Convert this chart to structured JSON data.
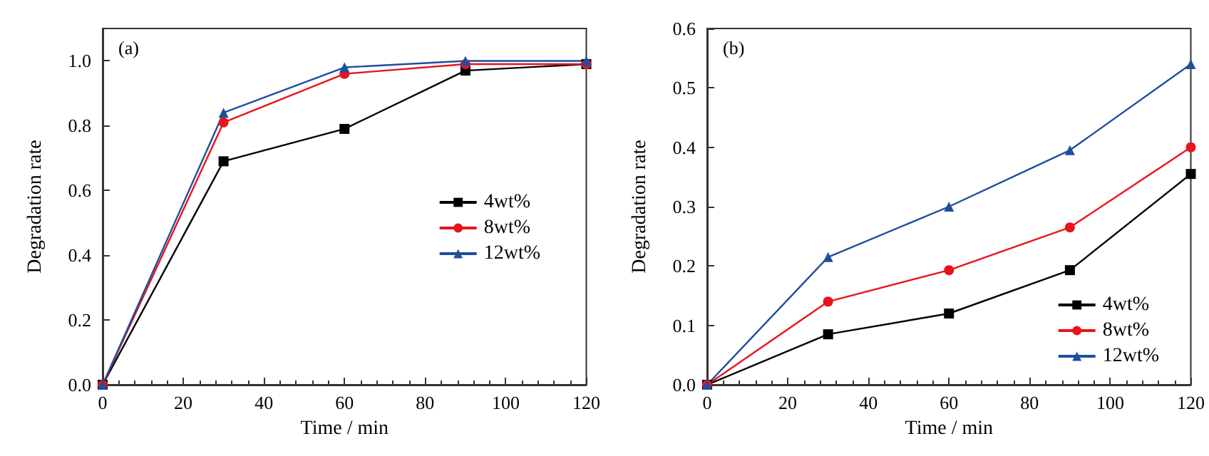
{
  "chart_data": [
    {
      "type": "line",
      "title": "(a)",
      "xlabel": "Time / min",
      "ylabel": "Degradation rate",
      "x": [
        0,
        30,
        60,
        90,
        120
      ],
      "series": [
        {
          "name": "4wt%",
          "color": "#000000",
          "marker": "square",
          "values": [
            0,
            0.69,
            0.79,
            0.97,
            0.99
          ]
        },
        {
          "name": "8wt%",
          "color": "#e8141c",
          "marker": "circle",
          "values": [
            0,
            0.81,
            0.96,
            0.99,
            0.99
          ]
        },
        {
          "name": "12wt%",
          "color": "#1f4e9c",
          "marker": "triangle",
          "values": [
            0,
            0.84,
            0.98,
            1.0,
            1.0
          ]
        }
      ],
      "xlim": [
        0,
        120
      ],
      "xticks": [
        0,
        20,
        40,
        60,
        80,
        100,
        120
      ],
      "ylim": [
        0,
        1.1
      ],
      "yticks": [
        {
          "value": 0,
          "label": "0.0"
        },
        {
          "value": 0.2,
          "label": "0.2"
        },
        {
          "value": 0.4,
          "label": "0.4"
        },
        {
          "value": 0.6,
          "label": "0.6"
        },
        {
          "value": 0.8,
          "label": "0.8"
        },
        {
          "value": 1.0,
          "label": "1.0"
        }
      ],
      "grid": false,
      "legend": "right"
    },
    {
      "type": "line",
      "title": "(b)",
      "xlabel": "Time / min",
      "ylabel": "Degradation rate",
      "x": [
        0,
        30,
        60,
        90,
        120
      ],
      "series": [
        {
          "name": "4wt%",
          "color": "#000000",
          "marker": "square",
          "values": [
            0,
            0.085,
            0.12,
            0.193,
            0.355
          ]
        },
        {
          "name": "8wt%",
          "color": "#e8141c",
          "marker": "circle",
          "values": [
            0,
            0.14,
            0.193,
            0.265,
            0.4
          ]
        },
        {
          "name": "12wt%",
          "color": "#1f4e9c",
          "marker": "triangle",
          "values": [
            0,
            0.215,
            0.3,
            0.395,
            0.54
          ]
        }
      ],
      "xlim": [
        0,
        120
      ],
      "xticks": [
        0,
        20,
        40,
        60,
        80,
        100,
        120
      ],
      "ylim": [
        0,
        0.6
      ],
      "yticks": [
        {
          "value": 0,
          "label": "0.0"
        },
        {
          "value": 0.1,
          "label": "0.1"
        },
        {
          "value": 0.2,
          "label": "0.2"
        },
        {
          "value": 0.3,
          "label": "0.3"
        },
        {
          "value": 0.4,
          "label": "0.4"
        },
        {
          "value": 0.5,
          "label": "0.5"
        },
        {
          "value": 0.6,
          "label": "0.6"
        }
      ],
      "grid": false,
      "legend": "bottom right"
    }
  ]
}
